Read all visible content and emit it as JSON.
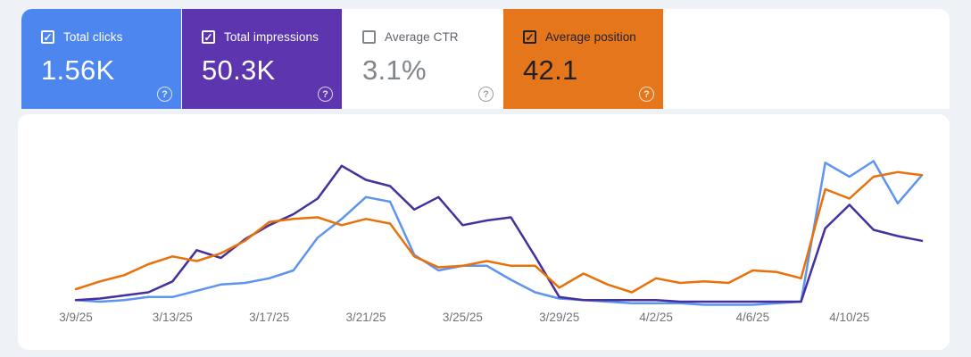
{
  "app": "Search Console performance overview",
  "icons": {
    "checkbox_check": "✓",
    "help": "?"
  },
  "cards": [
    {
      "id": "total-clicks",
      "label": "Total clicks",
      "value": "1.56K",
      "checked": true,
      "bg": "#4e86f0",
      "text_color": "#ffffff",
      "style": "colored"
    },
    {
      "id": "total-impressions",
      "label": "Total impressions",
      "value": "50.3K",
      "checked": true,
      "bg": "#5d35af",
      "text_color": "#ffffff",
      "style": "colored"
    },
    {
      "id": "average-ctr",
      "label": "Average CTR",
      "value": "3.1%",
      "checked": false,
      "bg": "#ffffff",
      "text_color": "#80868b",
      "style": "light"
    },
    {
      "id": "average-position",
      "label": "Average position",
      "value": "42.1",
      "checked": true,
      "bg": "#e6761c",
      "text_color": "#202124",
      "style": "colored"
    }
  ],
  "chart_data": {
    "type": "line",
    "x": [
      "3/9/25",
      "3/10/25",
      "3/11/25",
      "3/12/25",
      "3/13/25",
      "3/14/25",
      "3/15/25",
      "3/16/25",
      "3/17/25",
      "3/18/25",
      "3/19/25",
      "3/20/25",
      "3/21/25",
      "3/22/25",
      "3/23/25",
      "3/24/25",
      "3/25/25",
      "3/26/25",
      "3/27/25",
      "3/28/25",
      "3/29/25",
      "3/30/25",
      "3/31/25",
      "4/1/25",
      "4/2/25",
      "4/3/25",
      "4/4/25",
      "4/5/25",
      "4/6/25",
      "4/7/25",
      "4/8/25",
      "4/9/25",
      "4/10/25",
      "4/11/25",
      "4/12/25",
      "4/13/25"
    ],
    "x_ticks": [
      {
        "index": 0,
        "label": "3/9/25"
      },
      {
        "index": 4,
        "label": "3/13/25"
      },
      {
        "index": 8,
        "label": "3/17/25"
      },
      {
        "index": 12,
        "label": "3/21/25"
      },
      {
        "index": 16,
        "label": "3/25/25"
      },
      {
        "index": 20,
        "label": "3/29/25"
      },
      {
        "index": 24,
        "label": "4/2/25"
      },
      {
        "index": 28,
        "label": "4/6/25"
      },
      {
        "index": 32,
        "label": "4/10/25"
      }
    ],
    "series": [
      {
        "name": "Total clicks",
        "color": "#5e94ee",
        "values": [
          5,
          4,
          5,
          7,
          7,
          11,
          15,
          16,
          19,
          24,
          45,
          57,
          71,
          68,
          34,
          24,
          27,
          27,
          18,
          10,
          6,
          5,
          4,
          3,
          3,
          3,
          2,
          2,
          2,
          3,
          4,
          93,
          84,
          94,
          67,
          85
        ]
      },
      {
        "name": "Total impressions",
        "color": "#46309e",
        "values": [
          5,
          6,
          8,
          10,
          17,
          37,
          32,
          44,
          53,
          60,
          70,
          91,
          82,
          78,
          63,
          71,
          53,
          56,
          58,
          33,
          7,
          5,
          5,
          5,
          5,
          4,
          4,
          4,
          4,
          4,
          4,
          51,
          66,
          50,
          46,
          43
        ]
      },
      {
        "name": "Average position",
        "color": "#e8710a",
        "values": [
          12,
          17,
          21,
          28,
          33,
          30,
          35,
          43,
          55,
          57,
          58,
          53,
          57,
          54,
          33,
          26,
          27,
          30,
          27,
          27,
          13,
          22,
          15,
          10,
          19,
          16,
          17,
          16,
          24,
          23,
          19,
          76,
          70,
          84,
          87,
          85
        ]
      }
    ],
    "title": "",
    "xlabel": "",
    "ylabel": "",
    "ylim": [
      0,
      100
    ],
    "units": "relative scale — chart displays no y-axis; series are independently scaled",
    "grid": false,
    "legend": "none (series colors match the summary cards)",
    "tick_color": "#6f7378"
  }
}
